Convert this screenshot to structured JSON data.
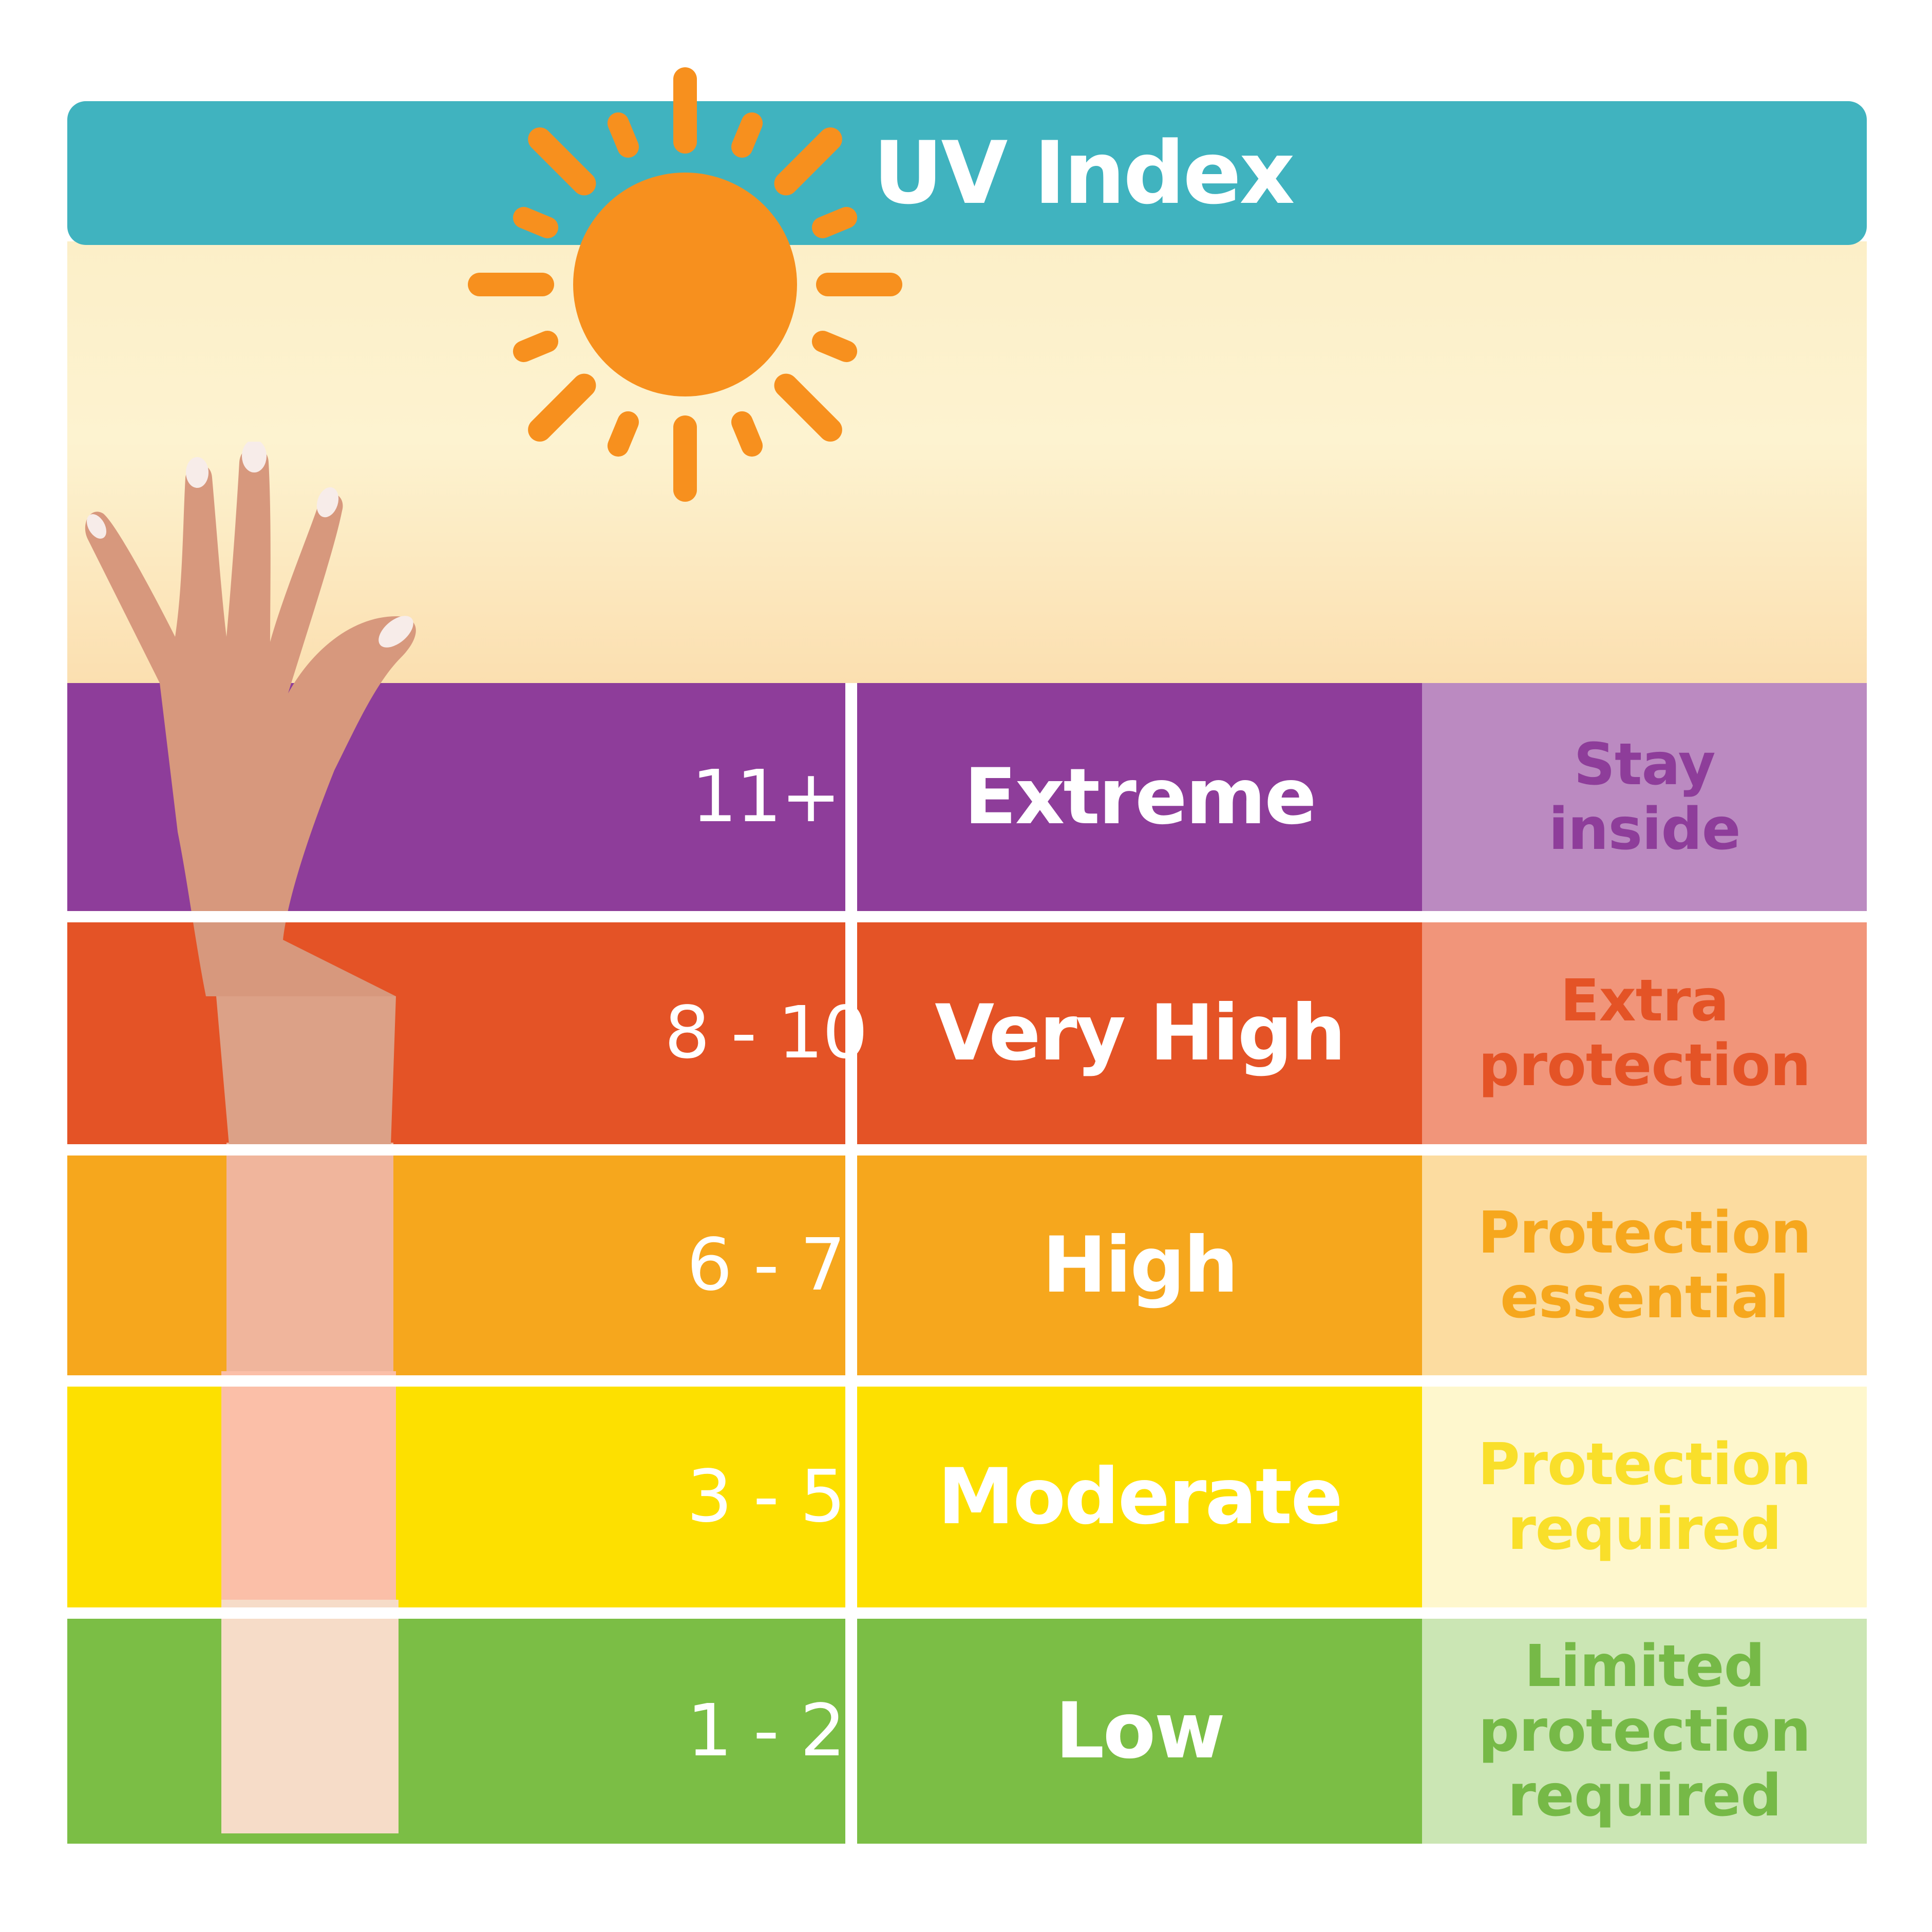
{
  "header": {
    "title": "UV Index"
  },
  "colors": {
    "header_bar": "#40b3bf",
    "sun": "#f7901e",
    "skin": "#d7987d",
    "nail": "#f7ece9"
  },
  "rows": [
    {
      "range": "11+",
      "level": "Extreme",
      "advice_line1": "Stay",
      "advice_line2": "inside",
      "main_color": "#8e3d9a",
      "light_color": "#bb8ac1",
      "advice_color": "#8e3d9a",
      "arm_color": "#d7987d"
    },
    {
      "range": "8 - 10",
      "level": "Very High",
      "advice_line1": "Extra",
      "advice_line2": "protection",
      "main_color": "#e45326",
      "light_color": "#f1957a",
      "advice_color": "#e45326",
      "arm_color": "#dca187"
    },
    {
      "range": "6 - 7",
      "level": "High",
      "advice_line1": "Protection",
      "advice_line2": "essential",
      "main_color": "#f6a71d",
      "light_color": "#fcdca0",
      "advice_color": "#f6a71d",
      "arm_color": "#f0b59c"
    },
    {
      "range": "3 - 5",
      "level": "Moderate",
      "advice_line1": "Protection",
      "advice_line2": "required",
      "main_color": "#fde000",
      "light_color": "#fef7cd",
      "advice_color": "#f9df2a",
      "arm_color": "#fbbfa8"
    },
    {
      "range": "1 - 2",
      "level": "Low",
      "advice_line1": "Limited protection",
      "advice_line2": "required",
      "main_color": "#7bbe45",
      "light_color": "#cbe6b4",
      "advice_color": "#76b947",
      "arm_color": "#f6dcc8"
    }
  ]
}
